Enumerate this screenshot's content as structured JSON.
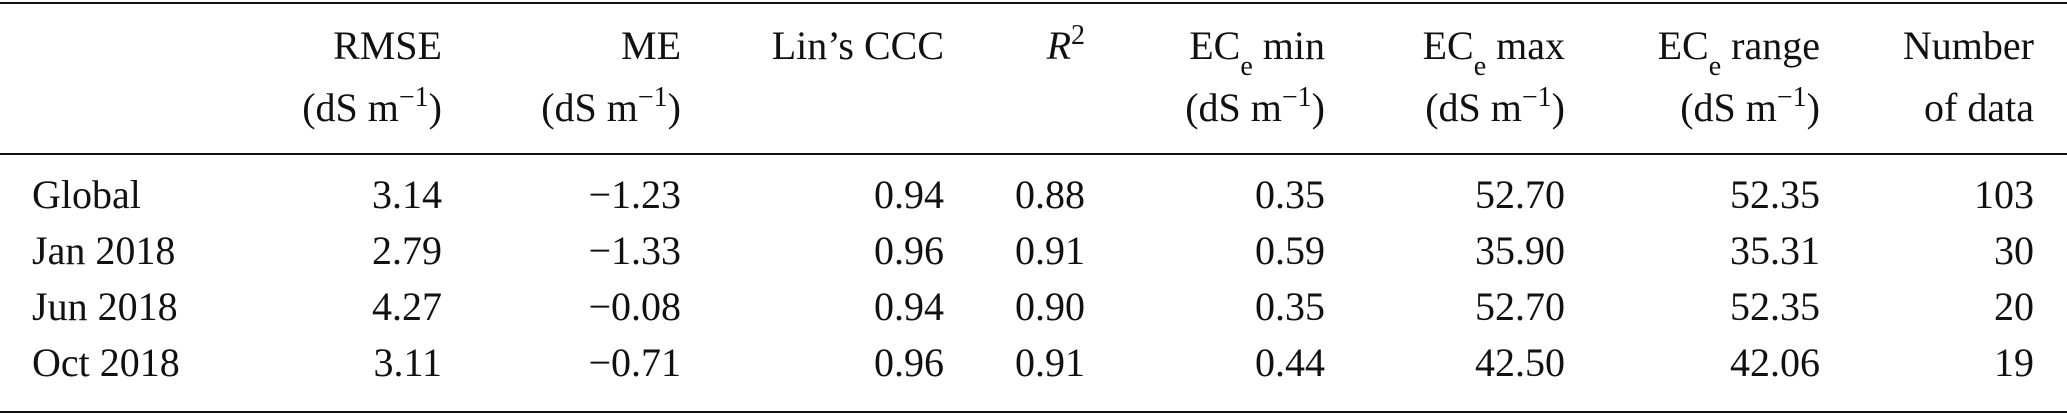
{
  "table": {
    "columns": [
      {
        "line1": [
          {
            "t": "RMSE"
          }
        ],
        "line2": [
          {
            "t": "(dS m"
          },
          {
            "sup": "−1"
          },
          {
            "t": ")"
          }
        ]
      },
      {
        "line1": [
          {
            "t": "ME"
          }
        ],
        "line2": [
          {
            "t": "(dS m"
          },
          {
            "sup": "−1"
          },
          {
            "t": ")"
          }
        ]
      },
      {
        "line1": [
          {
            "t": "Lin’s CCC"
          }
        ],
        "line2": []
      },
      {
        "line1": [
          {
            "t": "R",
            "italic": true
          },
          {
            "sup": "2"
          }
        ],
        "line2": []
      },
      {
        "line1": [
          {
            "t": "EC"
          },
          {
            "sub": "e"
          },
          {
            "t": " min"
          }
        ],
        "line2": [
          {
            "t": "(dS m"
          },
          {
            "sup": "−1"
          },
          {
            "t": ")"
          }
        ]
      },
      {
        "line1": [
          {
            "t": "EC"
          },
          {
            "sub": "e"
          },
          {
            "t": " max"
          }
        ],
        "line2": [
          {
            "t": "(dS m"
          },
          {
            "sup": "−1"
          },
          {
            "t": ")"
          }
        ]
      },
      {
        "line1": [
          {
            "t": "EC"
          },
          {
            "sub": "e"
          },
          {
            "t": " range"
          }
        ],
        "line2": [
          {
            "t": "(dS m"
          },
          {
            "sup": "−1"
          },
          {
            "t": ")"
          }
        ]
      },
      {
        "line1": [
          {
            "t": "Number"
          }
        ],
        "line2": [
          {
            "t": "of data"
          }
        ]
      }
    ],
    "rows": [
      {
        "label": "Global",
        "cells": [
          "3.14",
          "−1.23",
          "0.94",
          "0.88",
          "0.35",
          "52.70",
          "52.35",
          "103"
        ]
      },
      {
        "label": "Jan 2018",
        "cells": [
          "2.79",
          "−1.33",
          "0.96",
          "0.91",
          "0.59",
          "35.90",
          "35.31",
          "30"
        ]
      },
      {
        "label": "Jun 2018",
        "cells": [
          "4.27",
          "−0.08",
          "0.94",
          "0.90",
          "0.35",
          "52.70",
          "52.35",
          "20"
        ]
      },
      {
        "label": "Oct 2018",
        "cells": [
          "3.11",
          "−0.71",
          "0.96",
          "0.91",
          "0.44",
          "42.50",
          "42.06",
          "19"
        ]
      }
    ]
  }
}
